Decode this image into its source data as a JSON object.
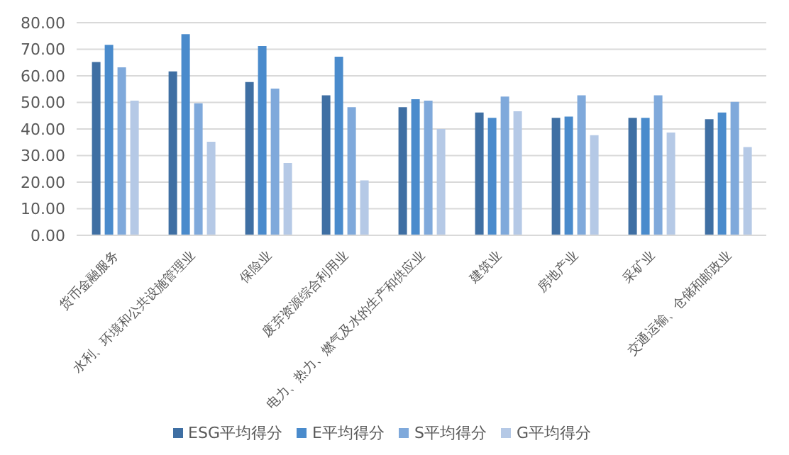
{
  "chart_data": {
    "type": "bar",
    "categories": [
      "货币金融服务",
      "水利、环境和公共设施管理业",
      "保险业",
      "废弃资源综合利用业",
      "电力、热力、燃气及水的生产和供应业",
      "建筑业",
      "房地产业",
      "采矿业",
      "交通运输、仓储和邮政业"
    ],
    "series": [
      {
        "name": "ESG平均得分",
        "color": "#3f6fa3",
        "values": [
          65.2,
          61.7,
          57.7,
          52.7,
          48.2,
          46.2,
          44.2,
          44.2,
          43.7
        ]
      },
      {
        "name": "E平均得分",
        "color": "#4a8bcc",
        "values": [
          71.7,
          75.7,
          71.2,
          67.2,
          51.2,
          44.2,
          44.7,
          44.2,
          46.2
        ]
      },
      {
        "name": "S平均得分",
        "color": "#7fa9db",
        "values": [
          63.2,
          49.7,
          55.2,
          48.2,
          50.7,
          52.2,
          52.7,
          52.7,
          50.2
        ]
      },
      {
        "name": "G平均得分",
        "color": "#b5c9e6",
        "values": [
          50.7,
          35.2,
          27.2,
          20.7,
          40.0,
          46.7,
          37.7,
          38.7,
          33.2
        ]
      }
    ],
    "ylim": [
      0,
      80
    ],
    "yticks": [
      {
        "value": 0,
        "label": "0.00"
      },
      {
        "value": 10,
        "label": "10.00"
      },
      {
        "value": 20,
        "label": "20.00"
      },
      {
        "value": 30,
        "label": "30.00"
      },
      {
        "value": 40,
        "label": "40.00"
      },
      {
        "value": 50,
        "label": "50.00"
      },
      {
        "value": 60,
        "label": "60.00"
      },
      {
        "value": 70,
        "label": "70.00"
      },
      {
        "value": 80,
        "label": "80.00"
      }
    ],
    "grid": "y",
    "legend": "bottom"
  }
}
